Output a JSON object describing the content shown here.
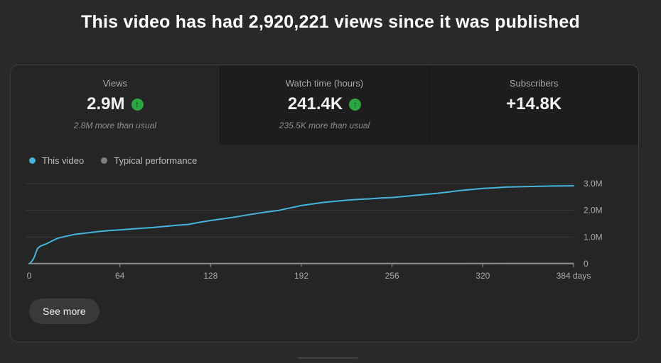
{
  "page_title": "This video has had 2,920,221 views since it was published",
  "colors": {
    "page_background": "#292929",
    "card_background": "#252525",
    "unselected_tab_background": "#1d1d1d",
    "accent_line_blue": "#46b4dc",
    "typical_performance_gray": "#7f7f7f",
    "trend_green": "#2ba640",
    "gridline": "#3a3a3a",
    "axis_line": "#999999",
    "tick_text": "#aaaaaa"
  },
  "icons": {
    "trend_up": "↑"
  },
  "metrics_card": {
    "tabs": [
      {
        "label": "Views",
        "value": "2.9M",
        "trend": "up",
        "delta_note": "2.8M more than usual",
        "selected": true
      },
      {
        "label": "Watch time (hours)",
        "value": "241.4K",
        "trend": "up",
        "delta_note": "235.5K more than usual",
        "selected": false
      },
      {
        "label": "Subscribers",
        "value": "+14.8K",
        "trend": "none",
        "delta_note": "",
        "selected": false
      }
    ],
    "legend": [
      {
        "label": "This video",
        "color": "#46b4dc"
      },
      {
        "label": "Typical performance",
        "color": "#7f7f7f"
      }
    ],
    "see_more_label": "See more"
  },
  "chart_data": {
    "type": "line",
    "xlabel": "days",
    "ylabel": "",
    "xlim": [
      0,
      384
    ],
    "ylim": [
      0,
      3000000
    ],
    "y_axis_position": "right",
    "grid": true,
    "legend_position": "top-left",
    "x_ticks": [
      {
        "value": 0,
        "label": "0"
      },
      {
        "value": 64,
        "label": "64"
      },
      {
        "value": 128,
        "label": "128"
      },
      {
        "value": 192,
        "label": "192"
      },
      {
        "value": 256,
        "label": "256"
      },
      {
        "value": 320,
        "label": "320"
      },
      {
        "value": 384,
        "label": "384 days"
      }
    ],
    "y_ticks": [
      {
        "value_millions": 0,
        "label": "0"
      },
      {
        "value_millions": 1,
        "label": "1.0M"
      },
      {
        "value_millions": 2,
        "label": "2.0M"
      },
      {
        "value_millions": 3,
        "label": "3.0M"
      }
    ],
    "series": [
      {
        "name": "This video",
        "color": "#46b4dc",
        "x_days": [
          0,
          1,
          2,
          3,
          4,
          5,
          6,
          8,
          10,
          12,
          16,
          20,
          26,
          32,
          40,
          48,
          56,
          64,
          72,
          80,
          88,
          96,
          104,
          112,
          120,
          128,
          136,
          144,
          152,
          160,
          168,
          176,
          184,
          192,
          200,
          208,
          216,
          224,
          232,
          240,
          248,
          256,
          264,
          272,
          280,
          288,
          296,
          304,
          312,
          320,
          328,
          336,
          344,
          352,
          360,
          368,
          376,
          384
        ],
        "y_views_millions": [
          0,
          0.04,
          0.1,
          0.18,
          0.3,
          0.45,
          0.58,
          0.66,
          0.7,
          0.74,
          0.85,
          0.95,
          1.03,
          1.1,
          1.15,
          1.2,
          1.24,
          1.27,
          1.3,
          1.33,
          1.36,
          1.4,
          1.44,
          1.47,
          1.55,
          1.62,
          1.68,
          1.74,
          1.81,
          1.88,
          1.94,
          2.0,
          2.09,
          2.18,
          2.24,
          2.3,
          2.34,
          2.38,
          2.41,
          2.43,
          2.46,
          2.48,
          2.52,
          2.56,
          2.6,
          2.64,
          2.69,
          2.74,
          2.78,
          2.82,
          2.84,
          2.87,
          2.88,
          2.89,
          2.9,
          2.91,
          2.915,
          2.92
        ]
      },
      {
        "name": "Typical performance",
        "color": "#7f7f7f",
        "x_days": [
          0,
          384
        ],
        "y_views_millions": [
          0.015,
          0.025
        ]
      }
    ]
  }
}
